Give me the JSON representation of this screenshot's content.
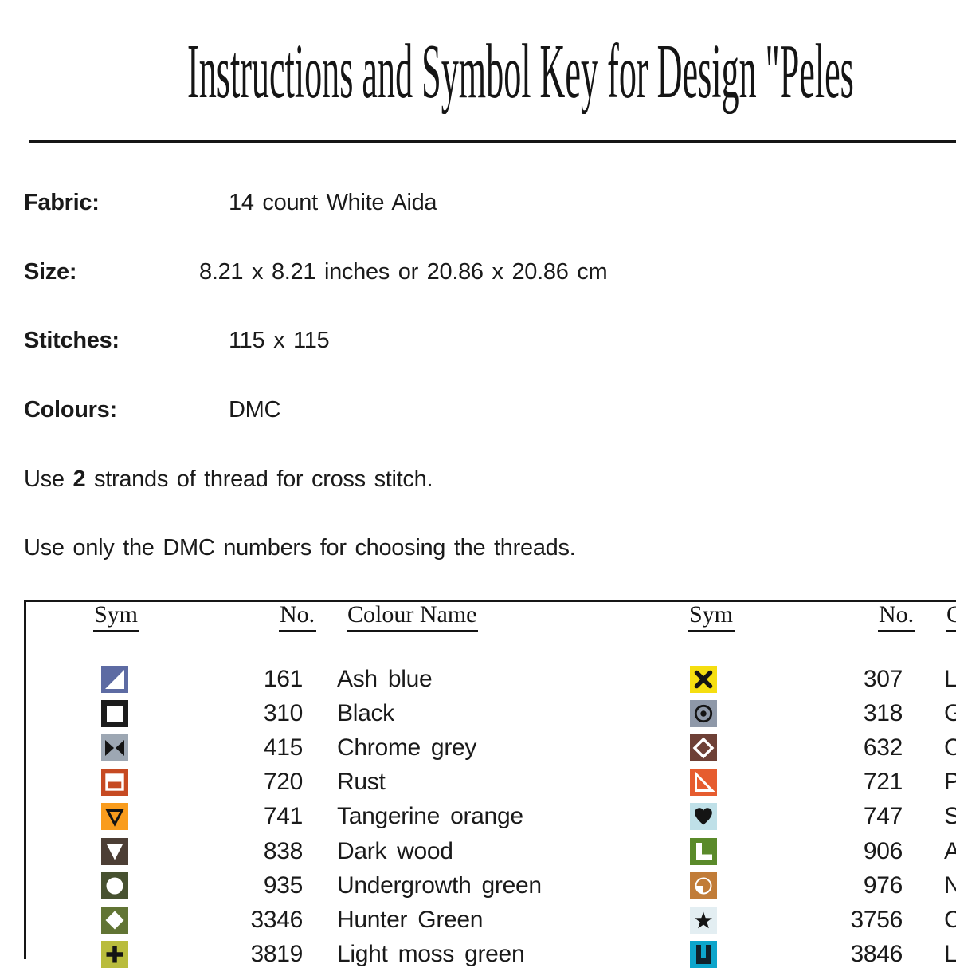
{
  "title": "Instructions and Symbol Key for Design \"Peles",
  "info": {
    "fabric_label": "Fabric:",
    "fabric_value": "14 count White Aida",
    "size_label": "Size:",
    "size_value": "8.21 x 8.21 inches or 20.86 x 20.86 cm",
    "stitches_label": "Stitches:",
    "stitches_value": "115 x 115",
    "colours_label": "Colours:",
    "colours_value": "DMC"
  },
  "notes": {
    "strands_prefix": "Use ",
    "strands_bold": "2",
    "strands_suffix": " strands of thread for cross stitch.",
    "dmc_note": "Use only the DMC numbers for choosing the threads."
  },
  "symbol_key": {
    "headers": {
      "sym": "Sym",
      "no": "No.",
      "colour": "Colour Name"
    },
    "left_rows": [
      {
        "no": "161",
        "name": "Ash blue",
        "sym_bg": "#5d6ba3",
        "glyph": "corner-triangle-filled",
        "glyph_color": "#ffffff"
      },
      {
        "no": "310",
        "name": "Black",
        "sym_bg": "#1c1c1c",
        "glyph": "inner-square",
        "glyph_color": "#ffffff"
      },
      {
        "no": "415",
        "name": "Chrome grey",
        "sym_bg": "#9da7b3",
        "glyph": "bowtie",
        "glyph_color": "#141414"
      },
      {
        "no": "720",
        "name": "Rust",
        "sym_bg": "#c64a22",
        "glyph": "split-rect",
        "glyph_color": "#ffffff"
      },
      {
        "no": "741",
        "name": "Tangerine orange",
        "sym_bg": "#f99c1d",
        "glyph": "triangle-down-outline",
        "glyph_color": "#141414"
      },
      {
        "no": "838",
        "name": "Dark wood",
        "sym_bg": "#4c3e35",
        "glyph": "triangle-down-filled",
        "glyph_color": "#ffffff"
      },
      {
        "no": "935",
        "name": "Undergrowth green",
        "sym_bg": "#475130",
        "glyph": "circle-filled",
        "glyph_color": "#ffffff"
      },
      {
        "no": "3346",
        "name": "Hunter Green",
        "sym_bg": "#617434",
        "glyph": "diamond-filled",
        "glyph_color": "#ffffff"
      },
      {
        "no": "3819",
        "name": "Light moss green",
        "sym_bg": "#b9bc3d",
        "glyph": "plus",
        "glyph_color": "#141414"
      }
    ],
    "right_rows": [
      {
        "no": "307",
        "name": "L",
        "sym_bg": "#f5de10",
        "glyph": "cross-x",
        "glyph_color": "#141414"
      },
      {
        "no": "318",
        "name": "G",
        "sym_bg": "#8e98a8",
        "glyph": "circle-dot",
        "glyph_color": "#141414"
      },
      {
        "no": "632",
        "name": "C",
        "sym_bg": "#6e4036",
        "glyph": "diamond-outline",
        "glyph_color": "#ffffff"
      },
      {
        "no": "721",
        "name": "P",
        "sym_bg": "#e65c2f",
        "glyph": "corner-triangle-outline",
        "glyph_color": "#ffffff"
      },
      {
        "no": "747",
        "name": "S",
        "sym_bg": "#bfe0e8",
        "glyph": "heart",
        "glyph_color": "#141414"
      },
      {
        "no": "906",
        "name": "A",
        "sym_bg": "#5a8a2a",
        "glyph": "l-shape",
        "glyph_color": "#ffffff"
      },
      {
        "no": "976",
        "name": "N",
        "sym_bg": "#c17c38",
        "glyph": "quarter-circle",
        "glyph_color": "#ffffff"
      },
      {
        "no": "3756",
        "name": "C",
        "sym_bg": "#e3eef2",
        "glyph": "star",
        "glyph_color": "#141414"
      },
      {
        "no": "3846",
        "name": "L",
        "sym_bg": "#0da5cb",
        "glyph": "u-shape",
        "glyph_color": "#10222b"
      }
    ]
  }
}
